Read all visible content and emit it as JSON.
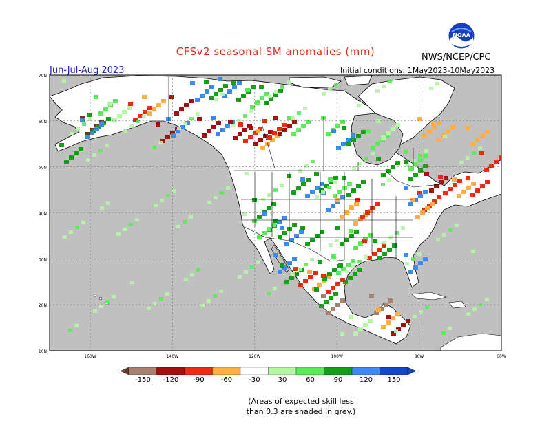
{
  "title": "CFSv2 seasonal SM anomalies (mm)",
  "agency": "NWS/NCEP/CPC",
  "logo_text": "NOAA",
  "season": "Jun-Jul-Aug 2023",
  "initial_conditions": "Initial conditions: 1May2023-10May2023",
  "lat_labels": [
    "70N",
    "60N",
    "50N",
    "40N",
    "30N",
    "20N",
    "10N"
  ],
  "lon_labels": [
    "160W",
    "140W",
    "120W",
    "100W",
    "80W",
    "60W"
  ],
  "legend": {
    "labels": [
      "-150",
      "-120",
      "-90",
      "-60",
      "-30",
      "30",
      "60",
      "90",
      "120",
      "150"
    ],
    "colors": [
      "#6b3a28",
      "#a8806e",
      "#a50f0d",
      "#ee2a10",
      "#ffae43",
      "#ffffff",
      "#b4f5a6",
      "#5bea58",
      "#13a017",
      "#3d8bf0",
      "#1446c8"
    ]
  },
  "note_line1": "(Areas of expected skill less",
  "note_line2": "than 0.3 are shaded in grey.)",
  "colors": {
    "ocean": "#c0c0c0",
    "land": "#ffffff",
    "title": "#e8261c",
    "season": "#1f23c8"
  }
}
